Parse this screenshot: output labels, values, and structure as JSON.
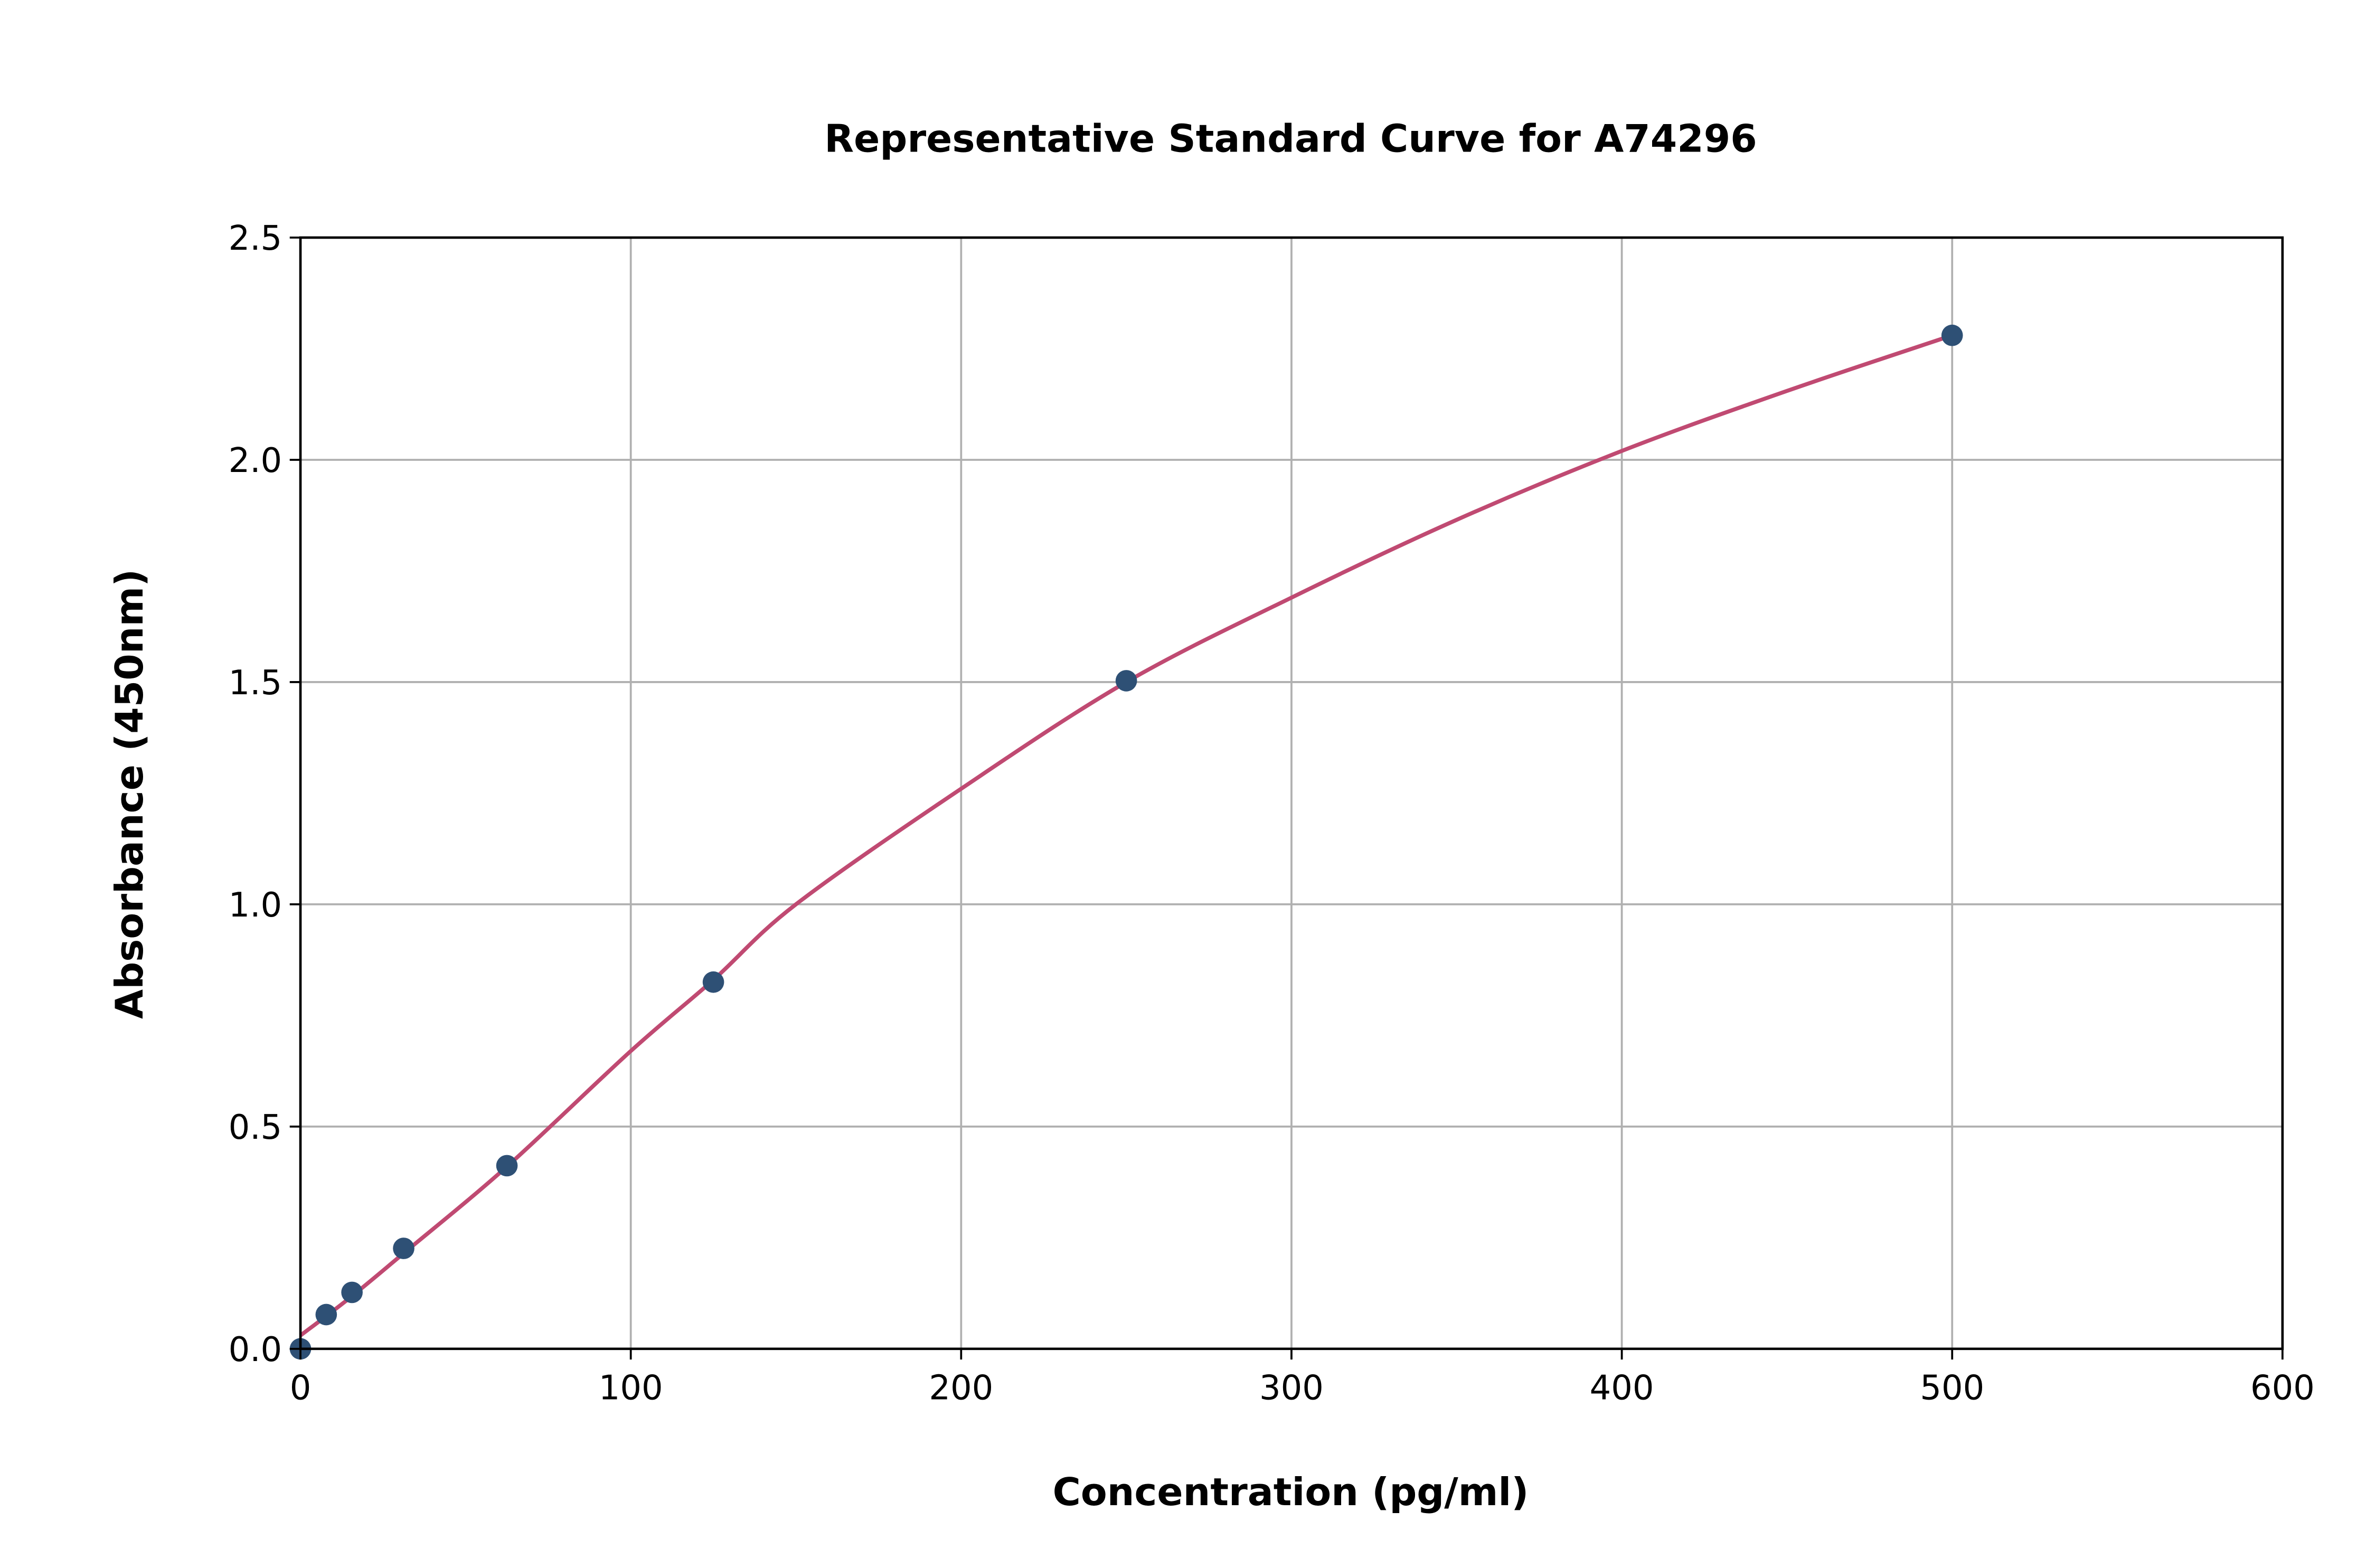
{
  "chart_data": {
    "type": "scatter",
    "title": "Representative Standard Curve for A74296",
    "xlabel": "Concentration (pg/ml)",
    "ylabel": "Absorbance (450nm)",
    "xlim": [
      0,
      600
    ],
    "ylim": [
      0,
      2.5
    ],
    "xticks": [
      0,
      100,
      200,
      300,
      400,
      500,
      600
    ],
    "xtick_labels": [
      "0",
      "100",
      "200",
      "300",
      "400",
      "500",
      "600"
    ],
    "yticks": [
      0,
      0.5,
      1.0,
      1.5,
      2.0,
      2.5
    ],
    "ytick_labels": [
      "0.0",
      "0.5",
      "1.0",
      "1.5",
      "2.0",
      "2.5"
    ],
    "grid": true,
    "points": {
      "x": [
        0,
        7.8,
        15.6,
        31.25,
        62.5,
        125,
        250,
        500
      ],
      "y": [
        0.0,
        0.077,
        0.127,
        0.226,
        0.412,
        0.825,
        1.503,
        2.28
      ],
      "color": "#2e5075"
    },
    "fit_curve": {
      "x": [
        0,
        15,
        31.25,
        62.5,
        100,
        125,
        150,
        200,
        250,
        300,
        350,
        400,
        450,
        500
      ],
      "y": [
        0.03,
        0.115,
        0.215,
        0.41,
        0.67,
        0.83,
        1.0,
        1.26,
        1.5,
        1.69,
        1.865,
        2.02,
        2.155,
        2.28
      ],
      "color": "#c04a72"
    }
  }
}
